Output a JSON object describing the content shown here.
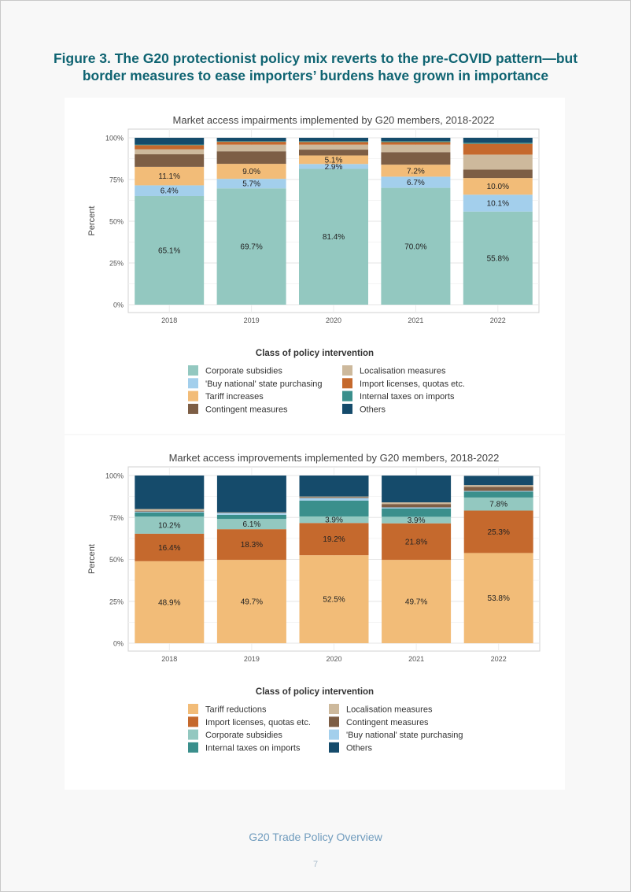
{
  "figure_title_line1": "Figure 3. The G20 protectionist policy mix reverts to the pre-COVID pattern—but",
  "figure_title_line2": "border measures to ease importers’ burdens have grown in importance",
  "footer_text": "G20 Trade Policy Overview",
  "page_number": "7",
  "chart_data": [
    {
      "type": "bar",
      "stacked": true,
      "title": "Market access impairments implemented by G20 members, 2018-2022",
      "xlabel": "",
      "ylabel": "Percent",
      "ylim": [
        0,
        100
      ],
      "yticks": [
        0,
        25,
        50,
        75,
        100
      ],
      "ytick_labels": [
        "0%",
        "25%",
        "50%",
        "75%",
        "100%"
      ],
      "categories": [
        "2018",
        "2019",
        "2020",
        "2021",
        "2022"
      ],
      "legend_title": "Class of policy intervention",
      "legend_position": "bottom",
      "legend_order": [
        "Corporate subsidies",
        "Localisation measures",
        "'Buy national' state purchasing",
        "Import licenses, quotas etc.",
        "Tariff increases",
        "Internal taxes on imports",
        "Contingent measures",
        "Others"
      ],
      "series": [
        {
          "name": "Corporate subsidies",
          "color": "#93c8c0",
          "values": [
            65.1,
            69.7,
            81.4,
            70.0,
            55.8
          ],
          "labels": [
            "65.1%",
            "69.7%",
            "81.4%",
            "70.0%",
            "55.8%"
          ]
        },
        {
          "name": "'Buy national' state purchasing",
          "color": "#a3cfec",
          "values": [
            6.4,
            5.7,
            2.9,
            6.7,
            10.1
          ],
          "labels": [
            "6.4%",
            "5.7%",
            "2.9%",
            "6.7%",
            "10.1%"
          ]
        },
        {
          "name": "Tariff increases",
          "color": "#f2bc78",
          "values": [
            11.1,
            9.0,
            5.1,
            7.2,
            10.0
          ],
          "labels": [
            "11.1%",
            "9.0%",
            "5.1%",
            "7.2%",
            "10.0%"
          ]
        },
        {
          "name": "Contingent measures",
          "color": "#7d5e45",
          "values": [
            7.5,
            7.5,
            3.5,
            7.5,
            5.0
          ],
          "labels": [
            "",
            "",
            "",
            "",
            ""
          ]
        },
        {
          "name": "Localisation measures",
          "color": "#cdb99c",
          "values": [
            3.0,
            4.0,
            3.0,
            4.5,
            9.0
          ],
          "labels": [
            "",
            "",
            "",
            "",
            ""
          ]
        },
        {
          "name": "Import licenses, quotas etc.",
          "color": "#c5692d",
          "values": [
            2.5,
            1.7,
            1.6,
            1.5,
            6.5
          ],
          "labels": [
            "",
            "",
            "",
            "",
            ""
          ]
        },
        {
          "name": "Internal taxes on imports",
          "color": "#3a8f8c",
          "values": [
            0.4,
            0.4,
            0.5,
            0.6,
            0.6
          ],
          "labels": [
            "",
            "",
            "",
            "",
            ""
          ]
        },
        {
          "name": "Others",
          "color": "#154b6b",
          "values": [
            4.0,
            2.0,
            2.0,
            2.0,
            3.0
          ],
          "labels": [
            "",
            "",
            "",
            "",
            ""
          ]
        }
      ]
    },
    {
      "type": "bar",
      "stacked": true,
      "title": "Market access improvements implemented by G20 members, 2018-2022",
      "xlabel": "",
      "ylabel": "Percent",
      "ylim": [
        0,
        100
      ],
      "yticks": [
        0,
        25,
        50,
        75,
        100
      ],
      "ytick_labels": [
        "0%",
        "25%",
        "50%",
        "75%",
        "100%"
      ],
      "categories": [
        "2018",
        "2019",
        "2020",
        "2021",
        "2022"
      ],
      "legend_title": "Class of policy intervention",
      "legend_position": "bottom",
      "legend_order": [
        "Tariff reductions",
        "Localisation measures",
        "Import licenses, quotas etc.",
        "Contingent measures",
        "Corporate subsidies",
        "'Buy national' state purchasing",
        "Internal taxes on imports",
        "Others"
      ],
      "series": [
        {
          "name": "Tariff reductions",
          "color": "#f2bc78",
          "values": [
            48.9,
            49.7,
            52.5,
            49.7,
            53.8
          ],
          "labels": [
            "48.9%",
            "49.7%",
            "52.5%",
            "49.7%",
            "53.8%"
          ]
        },
        {
          "name": "Import licenses, quotas etc.",
          "color": "#c5692d",
          "values": [
            16.4,
            18.3,
            19.2,
            21.8,
            25.3
          ],
          "labels": [
            "16.4%",
            "18.3%",
            "19.2%",
            "21.8%",
            "25.3%"
          ]
        },
        {
          "name": "Corporate subsidies",
          "color": "#93c8c0",
          "values": [
            10.2,
            6.1,
            3.9,
            3.9,
            7.8
          ],
          "labels": [
            "10.2%",
            "6.1%",
            "3.9%",
            "3.9%",
            "7.8%"
          ]
        },
        {
          "name": "Internal taxes on imports",
          "color": "#3a8f8c",
          "values": [
            2.5,
            2.5,
            9.5,
            5.0,
            3.5
          ],
          "labels": [
            "",
            "",
            "",
            "",
            ""
          ]
        },
        {
          "name": "'Buy national' state purchasing",
          "color": "#a3cfec",
          "values": [
            0.5,
            1.0,
            1.5,
            0.6,
            0.4
          ],
          "labels": [
            "",
            "",
            "",
            "",
            ""
          ]
        },
        {
          "name": "Contingent measures",
          "color": "#7d5e45",
          "values": [
            0.5,
            0.2,
            0.5,
            2.0,
            2.5
          ],
          "labels": [
            "",
            "",
            "",
            "",
            ""
          ]
        },
        {
          "name": "Localisation measures",
          "color": "#cdb99c",
          "values": [
            1.0,
            0.2,
            0.4,
            1.0,
            1.0
          ],
          "labels": [
            "",
            "",
            "",
            "",
            ""
          ]
        },
        {
          "name": "Others",
          "color": "#154b6b",
          "values": [
            20.0,
            22.0,
            12.5,
            16.0,
            5.5
          ],
          "labels": [
            "",
            "",
            "",
            "",
            ""
          ]
        }
      ]
    }
  ]
}
